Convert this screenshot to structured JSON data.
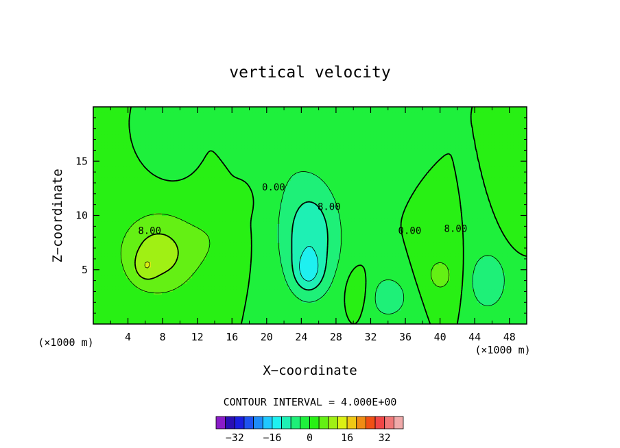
{
  "chart_data": {
    "type": "heatmap",
    "title": "vertical velocity",
    "xlabel": "X−coordinate",
    "ylabel": "Z−coordinate",
    "x_unit_left": "(×1000 m)",
    "x_unit_right": "(×1000 m)",
    "xlim": [
      0,
      50
    ],
    "ylim": [
      0,
      20
    ],
    "x_ticks": [
      4,
      8,
      12,
      16,
      20,
      24,
      28,
      32,
      36,
      40,
      44,
      48
    ],
    "y_ticks": [
      5,
      10,
      15
    ],
    "contour_interval_text": "CONTOUR INTERVAL = 4.000E+00",
    "contour_labels": [
      {
        "text": "8.00",
        "x": 6.5,
        "y": 8.3
      },
      {
        "text": "0.00",
        "x": 20.8,
        "y": 12.3
      },
      {
        "text": "8.00",
        "x": 27.2,
        "y": 10.5
      },
      {
        "text": "0.00",
        "x": 36.5,
        "y": 8.3
      },
      {
        "text": "8.00",
        "x": 41.8,
        "y": 8.5
      }
    ],
    "colorbar": {
      "levels": [
        -36,
        -32,
        -28,
        -24,
        -20,
        -16,
        -12,
        -8,
        -4,
        0,
        4,
        8,
        12,
        16,
        20,
        24,
        28,
        32,
        36
      ],
      "colors": [
        "#8a1cc8",
        "#2a0fb4",
        "#1a1ee0",
        "#1e52f0",
        "#1e8cf8",
        "#20c8ff",
        "#1ef0f0",
        "#1ef0b4",
        "#1ef078",
        "#1ef03c",
        "#28f014",
        "#64f014",
        "#a0f014",
        "#dcf014",
        "#f0c814",
        "#f08c14",
        "#f05014",
        "#f04646",
        "#f07878",
        "#f0aaaa"
      ],
      "tick_labels": [
        "−32",
        "−16",
        "0",
        "16",
        "32"
      ],
      "tick_values": [
        -32,
        -16,
        0,
        16,
        32
      ]
    },
    "features": [
      {
        "x": 7.5,
        "y": 6.5,
        "sx": 4.5,
        "sy": 3.8,
        "amp": 10
      },
      {
        "x": 6.0,
        "y": 5.2,
        "sx": 1.2,
        "sy": 1.2,
        "amp": 4
      },
      {
        "x": 14.0,
        "y": 8.0,
        "sx": 3.0,
        "sy": 3.5,
        "amp": 2.5
      },
      {
        "x": 25.0,
        "y": 8.0,
        "sx": 3.6,
        "sy": 5.5,
        "amp": -11
      },
      {
        "x": 24.8,
        "y": 4.8,
        "sx": 1.6,
        "sy": 1.8,
        "amp": -7
      },
      {
        "x": 34.0,
        "y": 2.5,
        "sx": 3.0,
        "sy": 2.5,
        "amp": -6
      },
      {
        "x": 30.5,
        "y": 3.0,
        "sx": 1.6,
        "sy": 2.2,
        "amp": 4
      },
      {
        "x": 40.0,
        "y": 4.5,
        "sx": 2.5,
        "sy": 2.5,
        "amp": 5
      },
      {
        "x": 45.5,
        "y": 4.0,
        "sx": 2.3,
        "sy": 2.8,
        "amp": -8
      },
      {
        "x": 48.8,
        "y": 10.3,
        "sx": 1.3,
        "sy": 2.5,
        "amp": 3
      },
      {
        "x": 17.2,
        "y": 11.4,
        "sx": 1.0,
        "sy": 1.2,
        "amp": 2.5
      },
      {
        "x": 9.0,
        "y": 15.8,
        "sx": 1.8,
        "sy": 1.8,
        "amp": -3.5
      },
      {
        "x": 0.7,
        "y": 10.8,
        "sx": 0.8,
        "sy": 1.2,
        "amp": 2.5
      },
      {
        "x": 21.5,
        "y": 16.5,
        "sx": 3.5,
        "sy": 5.0,
        "amp": -2.0
      }
    ]
  }
}
